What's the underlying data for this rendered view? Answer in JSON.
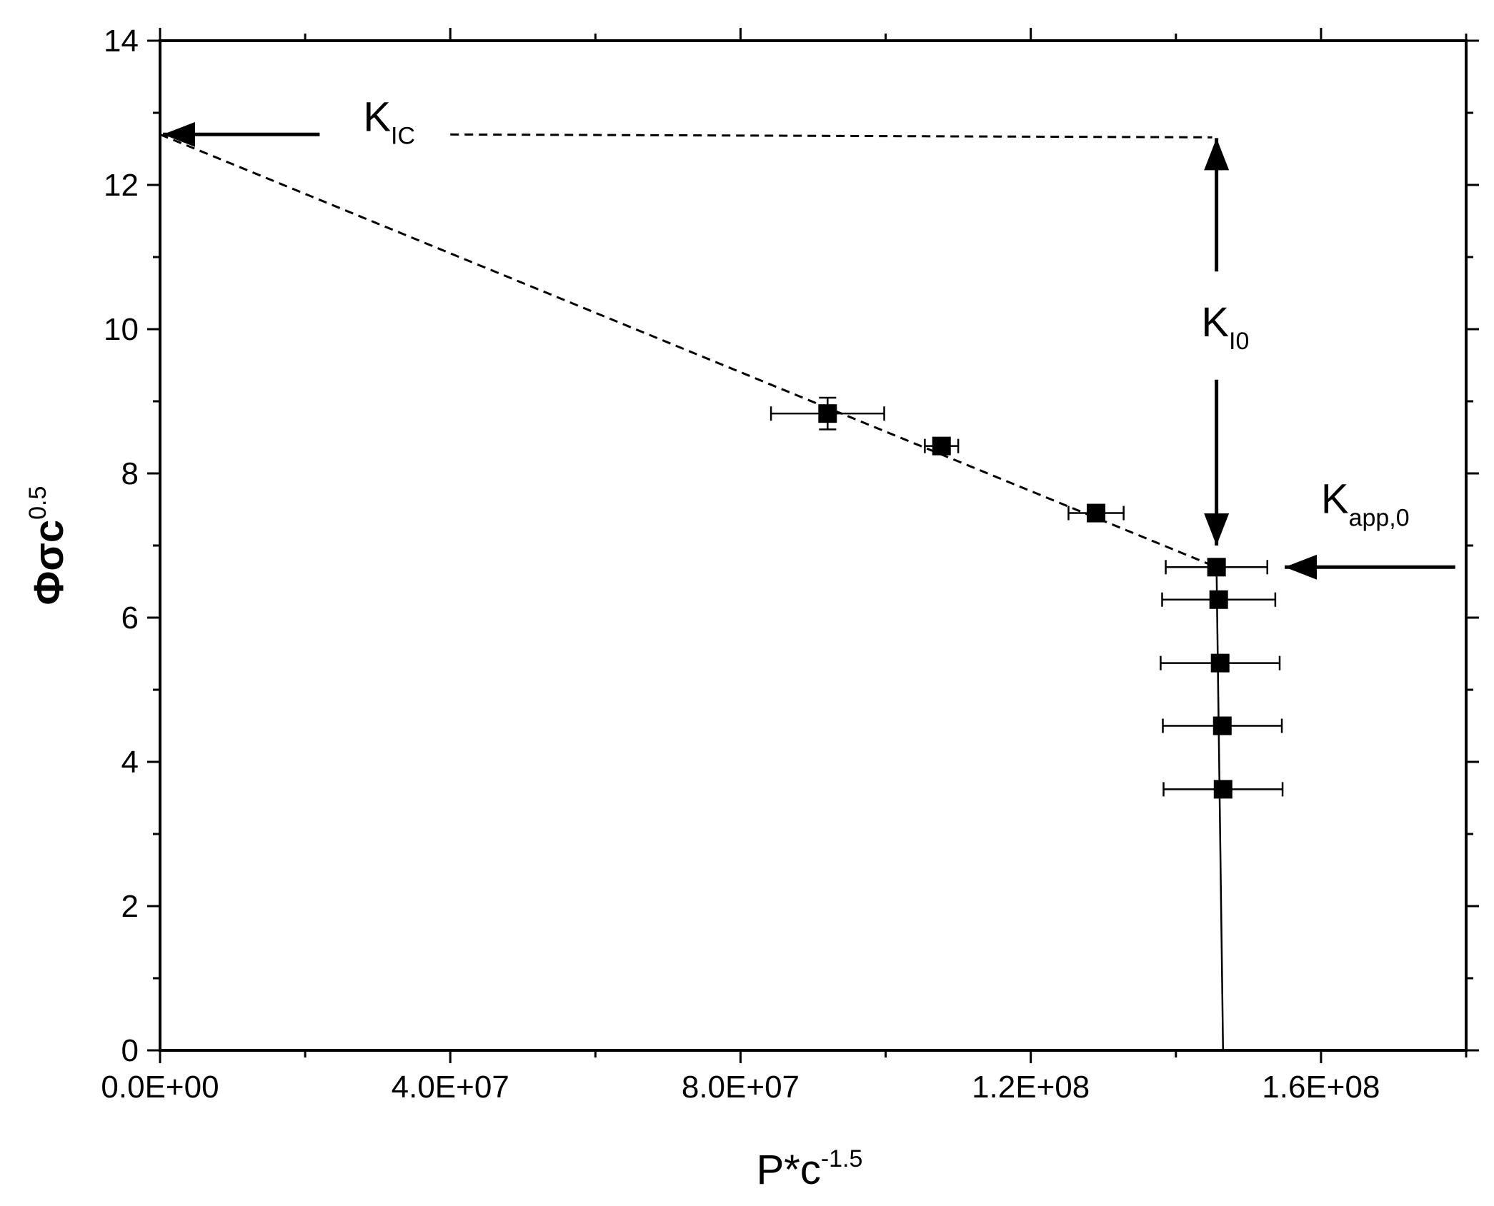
{
  "chart_data": {
    "type": "scatter",
    "xlabel": {
      "base": "P*c",
      "sup": "-1.5"
    },
    "ylabel": {
      "base": "Φσc",
      "sup": "0.5"
    },
    "xlim": [
      0,
      180000000
    ],
    "ylim": [
      0,
      14
    ],
    "x_ticks": [
      {
        "value": 0,
        "label": "0.0E+00"
      },
      {
        "value": 40000000,
        "label": "4.0E+07"
      },
      {
        "value": 80000000,
        "label": "8.0E+07"
      },
      {
        "value": 120000000,
        "label": "1.2E+08"
      },
      {
        "value": 160000000,
        "label": "1.6E+08"
      }
    ],
    "y_ticks": [
      {
        "value": 0,
        "label": "0"
      },
      {
        "value": 2,
        "label": "2"
      },
      {
        "value": 4,
        "label": "4"
      },
      {
        "value": 6,
        "label": "6"
      },
      {
        "value": 8,
        "label": "8"
      },
      {
        "value": 10,
        "label": "10"
      },
      {
        "value": 12,
        "label": "12"
      },
      {
        "value": 14,
        "label": "14"
      }
    ],
    "grid": false,
    "points": [
      {
        "x": 92000000,
        "y": 8.83,
        "xerr": 7800000,
        "yerr": 0.22
      },
      {
        "x": 107700000,
        "y": 8.38,
        "xerr": 2300000,
        "yerr": 0.08
      },
      {
        "x": 129000000,
        "y": 7.45,
        "xerr": 3800000,
        "yerr": 0.08
      },
      {
        "x": 145600000,
        "y": 6.7,
        "xerr": 7000000,
        "yerr": 0.1
      },
      {
        "x": 145900000,
        "y": 6.25,
        "xerr": 7800000,
        "yerr": 0.06
      },
      {
        "x": 146100000,
        "y": 5.37,
        "xerr": 8200000,
        "yerr": 0.06
      },
      {
        "x": 146400000,
        "y": 4.5,
        "xerr": 8200000,
        "yerr": 0.06
      },
      {
        "x": 146500000,
        "y": 3.62,
        "xerr": 8200000,
        "yerr": 0.06
      }
    ],
    "fit_line_dashed": [
      [
        0,
        12.7
      ],
      [
        145600000,
        6.7
      ]
    ],
    "vertical_line": [
      [
        145600000,
        6.7
      ],
      [
        146500000,
        0
      ]
    ],
    "kic_dashed": [
      [
        40000000,
        12.7
      ],
      [
        145000000,
        12.66
      ]
    ],
    "annotations": [
      {
        "id": "kic",
        "base": "K",
        "sub": "IC",
        "x": 28000000,
        "y": 12.75
      },
      {
        "id": "ki0",
        "base": "K",
        "sub": "I0",
        "x": 143500000,
        "y": 9.9
      },
      {
        "id": "kapp0",
        "base": "K",
        "sub": "app,0",
        "x": 160000000,
        "y": 7.45
      }
    ],
    "arrows": [
      {
        "id": "arrow-kic",
        "from": [
          22000000,
          12.7
        ],
        "to": [
          400000,
          12.7
        ]
      },
      {
        "id": "arrow-ki0-up",
        "from": [
          145600000,
          10.8
        ],
        "to": [
          145600000,
          12.65
        ]
      },
      {
        "id": "arrow-ki0-down",
        "from": [
          145600000,
          9.3
        ],
        "to": [
          145600000,
          7.0
        ]
      },
      {
        "id": "arrow-kapp0",
        "from": [
          178500000,
          6.7
        ],
        "to": [
          155000000,
          6.7
        ]
      }
    ]
  }
}
